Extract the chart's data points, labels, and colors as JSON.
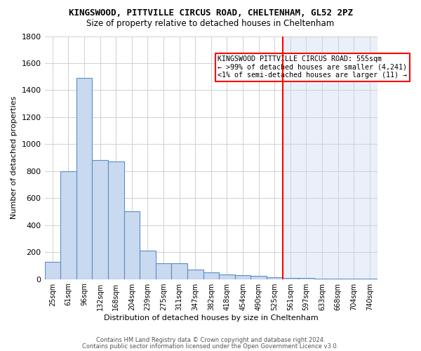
{
  "title1": "KINGSWOOD, PITTVILLE CIRCUS ROAD, CHELTENHAM, GL52 2PZ",
  "title2": "Size of property relative to detached houses in Cheltenham",
  "xlabel": "Distribution of detached houses by size in Cheltenham",
  "ylabel": "Number of detached properties",
  "bar_labels": [
    "25sqm",
    "61sqm",
    "96sqm",
    "132sqm",
    "168sqm",
    "204sqm",
    "239sqm",
    "275sqm",
    "311sqm",
    "347sqm",
    "382sqm",
    "418sqm",
    "454sqm",
    "490sqm",
    "525sqm",
    "561sqm",
    "597sqm",
    "633sqm",
    "668sqm",
    "704sqm",
    "740sqm"
  ],
  "bar_heights": [
    130,
    800,
    1490,
    880,
    870,
    500,
    210,
    115,
    115,
    70,
    50,
    35,
    30,
    25,
    15,
    10,
    10,
    5,
    5,
    5,
    5
  ],
  "bar_color": "#c9d9ef",
  "bar_edge_color": "#5b8dc8",
  "bg_color_left": "#ffffff",
  "bg_color_right": "#e8edf7",
  "grid_color": "#d0d0d0",
  "red_line_index": 15,
  "annotation_text": "KINGSWOOD PITTVILLE CIRCUS ROAD: 555sqm\n← >99% of detached houses are smaller (4,241)\n<1% of semi-detached houses are larger (11) →",
  "footer1": "Contains HM Land Registry data © Crown copyright and database right 2024.",
  "footer2": "Contains public sector information licensed under the Open Government Licence v3.0.",
  "ylim": [
    0,
    1800
  ],
  "yticks": [
    0,
    200,
    400,
    600,
    800,
    1000,
    1200,
    1400,
    1600,
    1800
  ]
}
